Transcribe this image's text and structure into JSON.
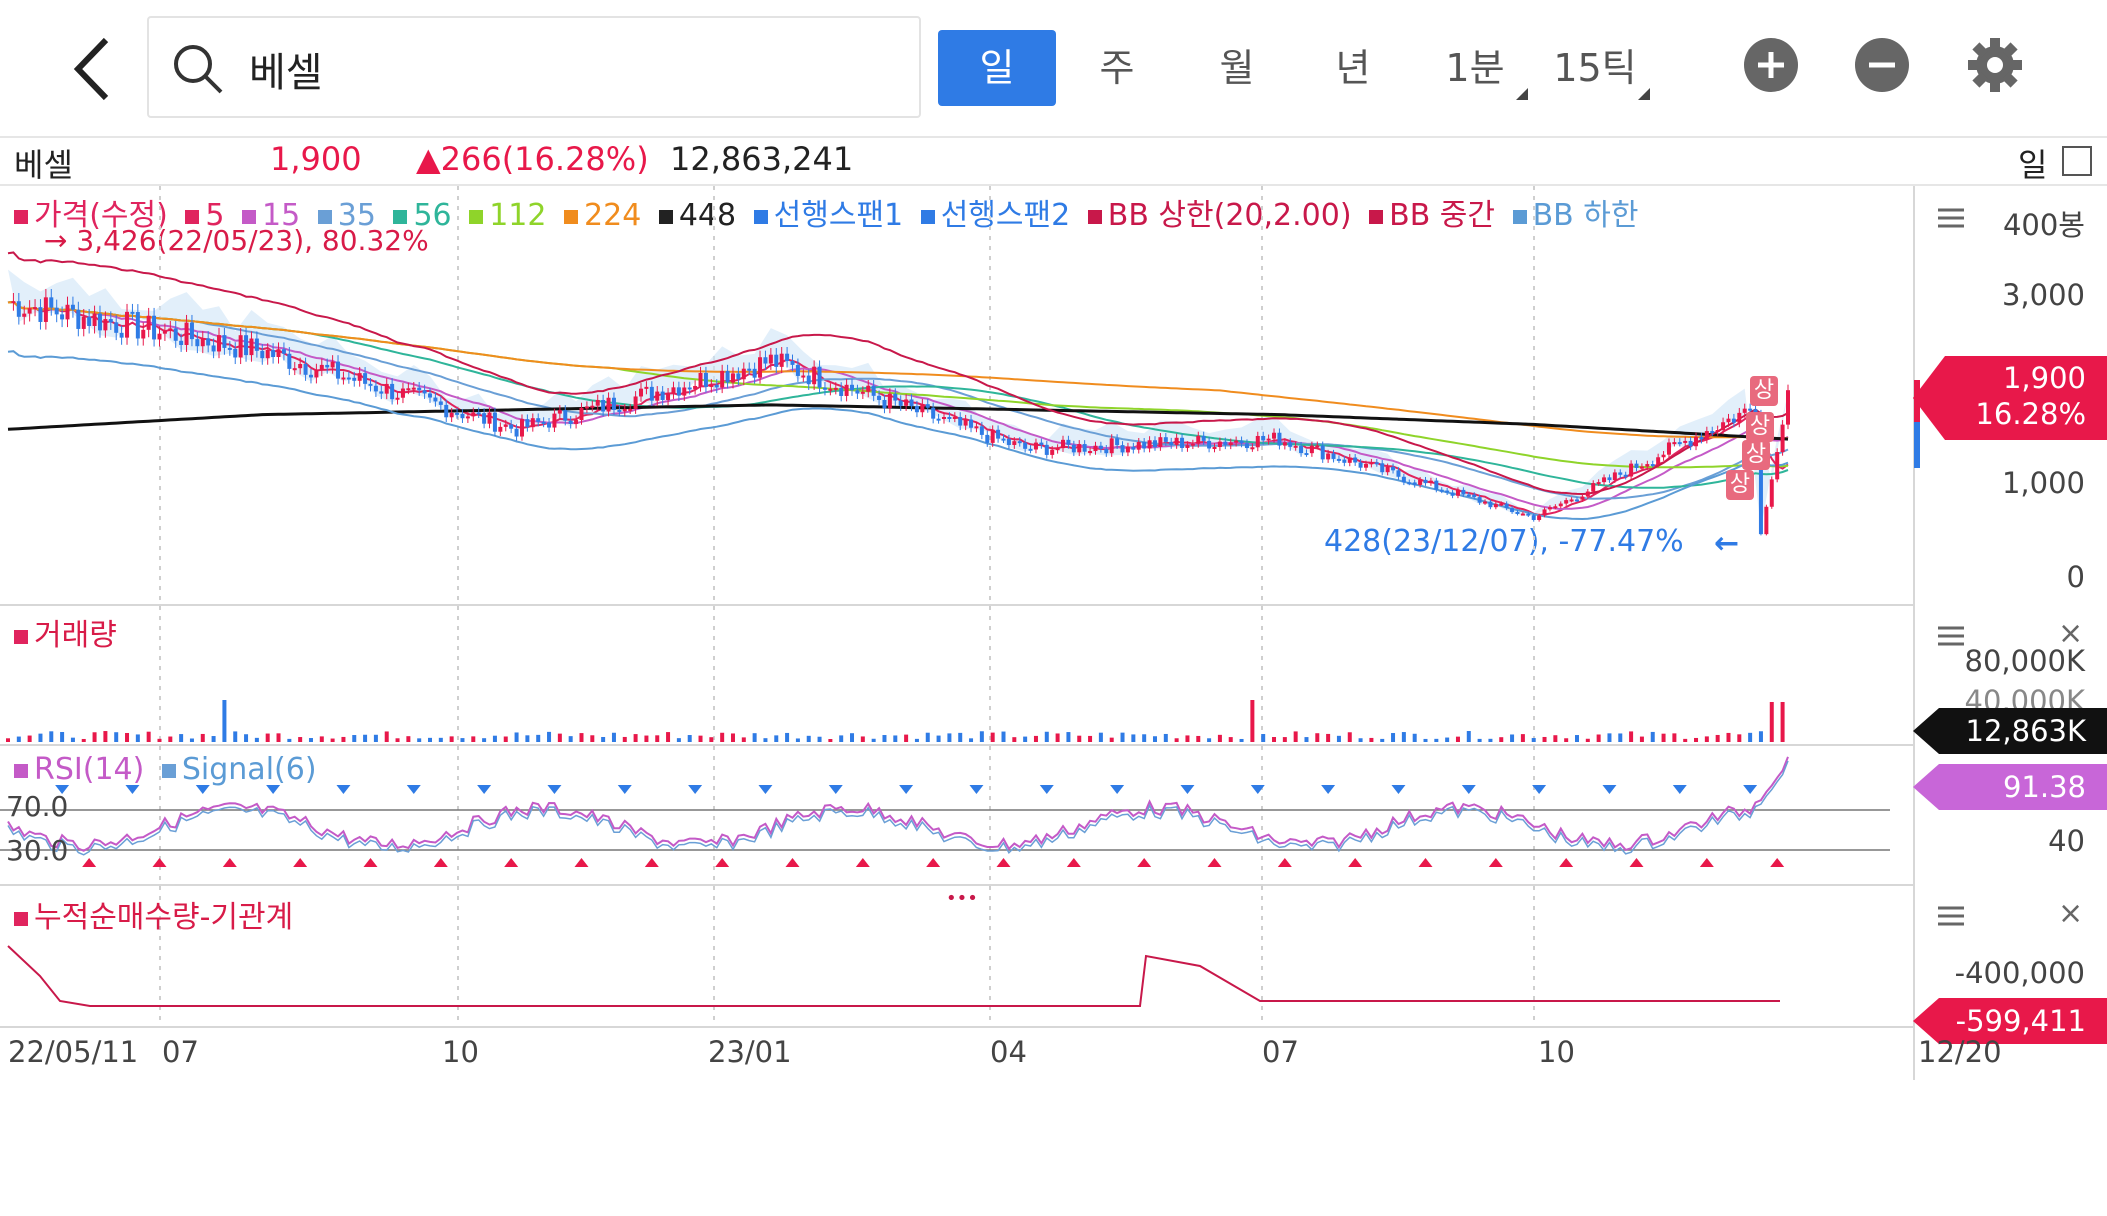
{
  "search": {
    "value": "베셀"
  },
  "periods": [
    {
      "label": "일",
      "active": true
    },
    {
      "label": "주",
      "active": false
    },
    {
      "label": "월",
      "active": false
    },
    {
      "label": "년",
      "active": false
    },
    {
      "label": "1분",
      "active": false
    },
    {
      "label": "15틱",
      "active": false
    }
  ],
  "info": {
    "name": "베셀",
    "price": "1,900",
    "change": "▲266(16.28%)",
    "volume": "12,863,241",
    "period_label": "일"
  },
  "legend": {
    "items": [
      {
        "label": "가격(수정)",
        "color": "#e0245e"
      },
      {
        "label": "5",
        "color": "#e0245e"
      },
      {
        "label": "15",
        "color": "#c45ac7"
      },
      {
        "label": "35",
        "color": "#6a9fd6"
      },
      {
        "label": "56",
        "color": "#2fb59a"
      },
      {
        "label": "112",
        "color": "#8fd42a"
      },
      {
        "label": "224",
        "color": "#f08c1e"
      },
      {
        "label": "448",
        "color": "#222222"
      },
      {
        "label": "선행스팬1",
        "color": "#2f7be5"
      },
      {
        "label": "선행스팬2",
        "color": "#2f7be5"
      },
      {
        "label": "BB 상한(20,2.00)",
        "color": "#c8184a"
      },
      {
        "label": "BB 중간",
        "color": "#c8184a"
      },
      {
        "label": "BB 하한",
        "color": "#5b9bd5"
      }
    ],
    "high_annotation": "→ 3,426(22/05/23), 80.32%",
    "low_annotation": "428(23/12/07), -77.47%",
    "low_arrow": "←"
  },
  "price_axis": {
    "labels": [
      "400봉",
      "3,000",
      "1,000",
      "0"
    ]
  },
  "price_flag": {
    "price": "1,900",
    "pct": "16.28%",
    "color": "#e8184a"
  },
  "limit_up_label": "상",
  "volume_panel": {
    "title": "거래량",
    "axis": [
      "80,000K",
      "40,000K"
    ],
    "flag": "12,863K"
  },
  "rsi_panel": {
    "title": "RSI(14)",
    "signal": "Signal(6)",
    "line_70": "70.0",
    "line_30": "30.0",
    "axis": [
      "40"
    ],
    "flag": "91.38"
  },
  "inst_panel": {
    "title": "누적순매수량-기관계",
    "axis": [
      "-400,000"
    ],
    "flag": "-599,411"
  },
  "x_labels": [
    "22/05/11",
    "07",
    "10",
    "23/01",
    "04",
    "07",
    "10",
    "12/20"
  ],
  "more_dots": "•••",
  "close_symbol": "×",
  "colors": {
    "accent": "#2f7be5",
    "up": "#e8184a",
    "down": "#2f7be5"
  },
  "chart_data": {
    "type": "line",
    "title": "",
    "x": [
      "22/05/11",
      "22/07",
      "22/10",
      "23/01",
      "23/04",
      "23/07",
      "23/10",
      "23/12/20"
    ],
    "series": [
      {
        "name": "가격(수정)",
        "values": [
          2800,
          2300,
          1500,
          2200,
          1300,
          1400,
          600,
          1900
        ]
      },
      {
        "name": "448",
        "values": [
          1500,
          1650,
          1700,
          1750,
          1700,
          1650,
          1550,
          1400
        ]
      }
    ],
    "ylim": [
      0,
      3400
    ],
    "high": {
      "value": 3426,
      "date": "22/05/23",
      "pct": 80.32
    },
    "low": {
      "value": 428,
      "date": "23/12/07",
      "pct": -77.47
    }
  }
}
